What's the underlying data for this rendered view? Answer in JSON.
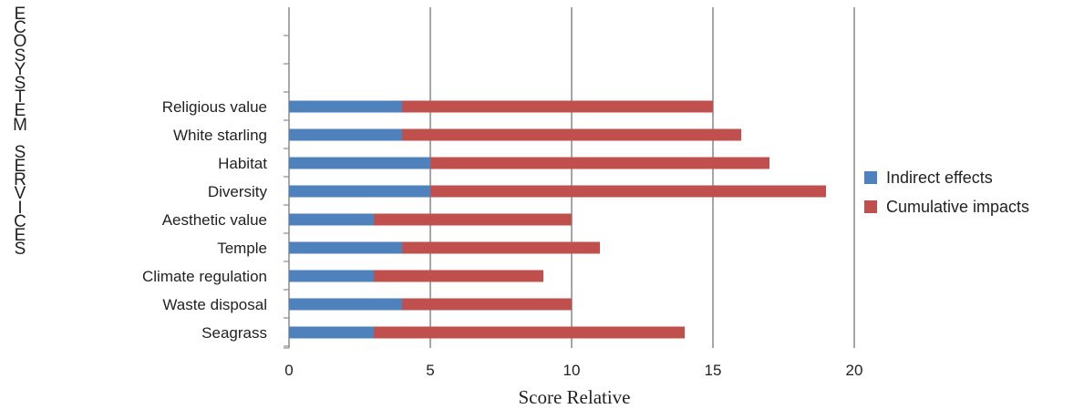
{
  "chart_data": {
    "type": "bar",
    "orientation": "horizontal",
    "stacked": true,
    "title": "",
    "xlabel": "Score Relative",
    "ylabel": "ECOSYSTEM SERVICES",
    "xlim": [
      0,
      20
    ],
    "xticks": [
      "0",
      "5",
      "10",
      "15",
      "20"
    ],
    "grid": "vertical",
    "legend_position": "right",
    "categories": [
      "Religious value",
      "White starling",
      "Habitat",
      "Diversity",
      "Aesthetic value",
      "Temple",
      "Climate regulation",
      "Waste disposal",
      "Seagrass"
    ],
    "series": [
      {
        "name": "Indirect effects",
        "color": "#4f81bd",
        "values": [
          4,
          4,
          5,
          5,
          3,
          4,
          3,
          4,
          3
        ]
      },
      {
        "name": "Cumulative impacts",
        "color": "#c0504d",
        "values": [
          11,
          12,
          12,
          14,
          7,
          7,
          6,
          6,
          11
        ]
      }
    ]
  }
}
